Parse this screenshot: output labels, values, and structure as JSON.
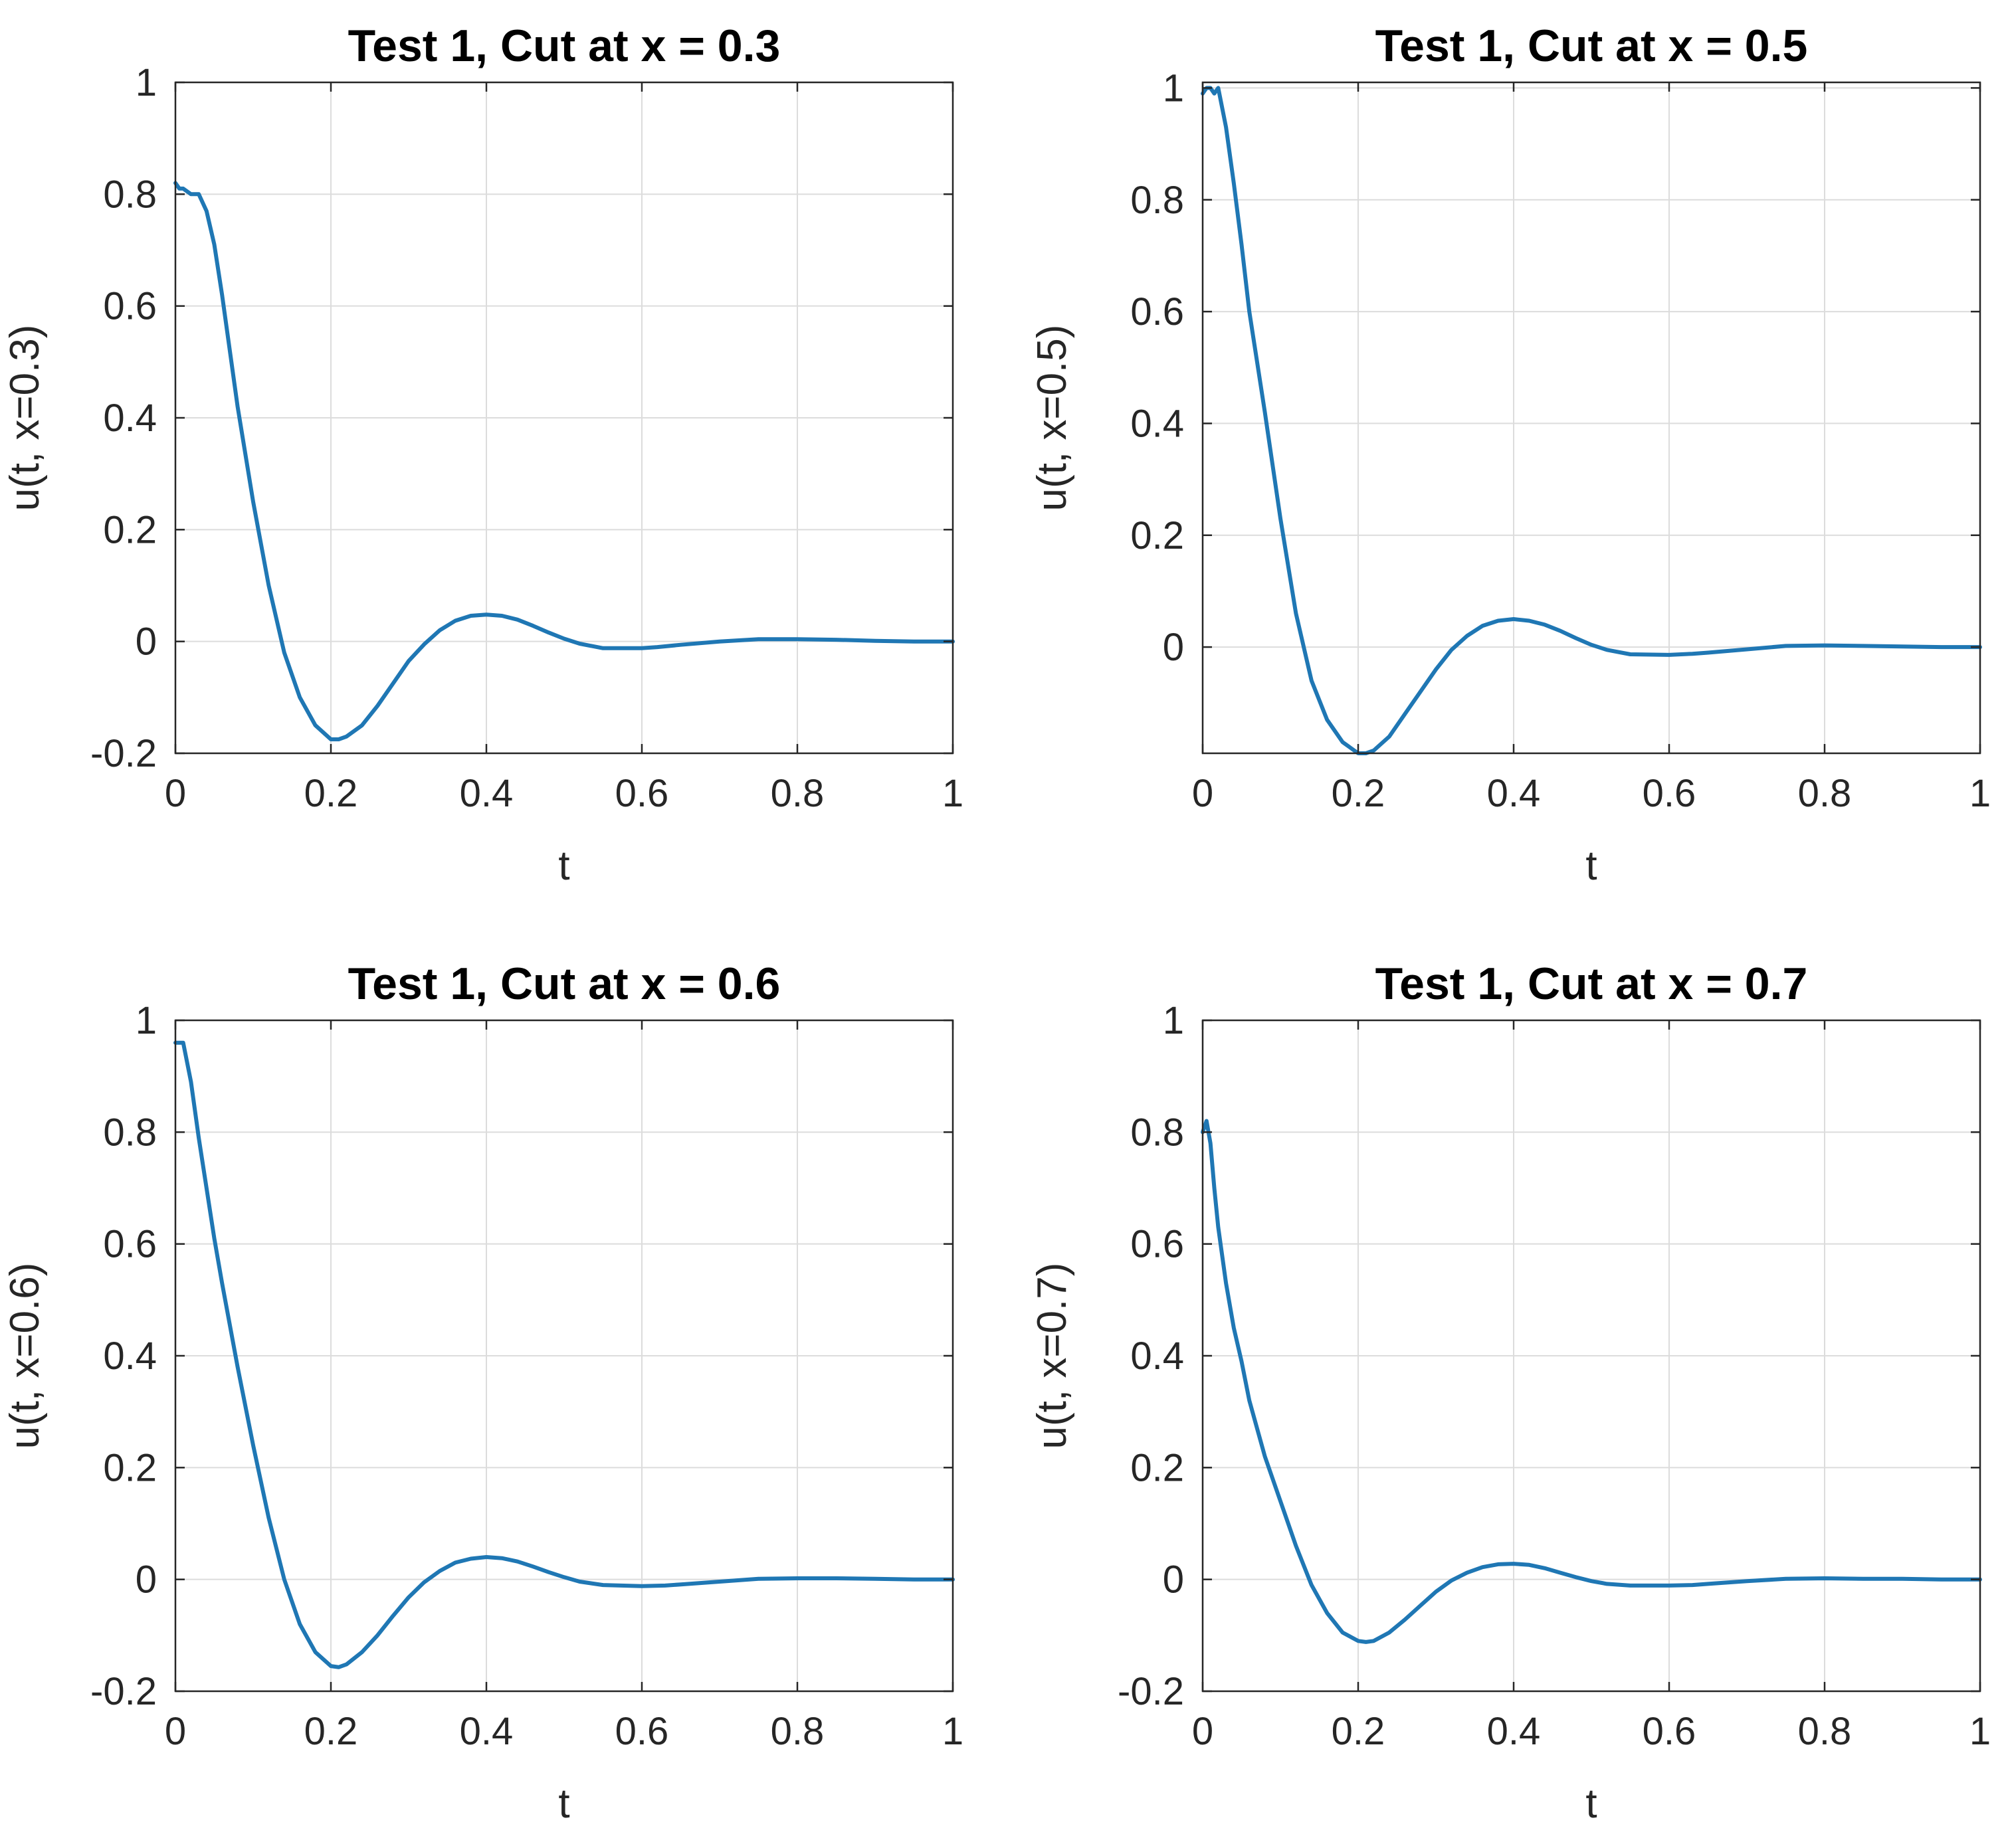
{
  "figure": {
    "line_color": "#1f77b4"
  },
  "chart_data": [
    {
      "type": "line",
      "title": "Test 1, Cut at x = 0.3",
      "xlabel": "t",
      "ylabel": "u(t, x=0.3)",
      "xlim": [
        0,
        1
      ],
      "ylim": [
        -0.2,
        1
      ],
      "xticks": [
        "0",
        "0.2",
        "0.4",
        "0.6",
        "0.8",
        "1"
      ],
      "yticks": [
        "-0.2",
        "0",
        "0.2",
        "0.4",
        "0.6",
        "0.8",
        "1"
      ],
      "grid": true,
      "series": [
        {
          "name": "u",
          "color": "#1f77b4",
          "x": [
            0,
            0.005,
            0.01,
            0.02,
            0.03,
            0.04,
            0.05,
            0.06,
            0.07,
            0.08,
            0.1,
            0.12,
            0.14,
            0.16,
            0.18,
            0.2,
            0.21,
            0.22,
            0.24,
            0.26,
            0.28,
            0.3,
            0.32,
            0.34,
            0.36,
            0.38,
            0.4,
            0.42,
            0.44,
            0.46,
            0.48,
            0.5,
            0.52,
            0.55,
            0.6,
            0.62,
            0.65,
            0.7,
            0.75,
            0.8,
            0.85,
            0.9,
            0.95,
            1.0
          ],
          "y": [
            0.82,
            0.81,
            0.81,
            0.8,
            0.8,
            0.77,
            0.71,
            0.62,
            0.52,
            0.42,
            0.25,
            0.1,
            -0.02,
            -0.1,
            -0.15,
            -0.175,
            -0.175,
            -0.17,
            -0.15,
            -0.115,
            -0.075,
            -0.035,
            -0.005,
            0.02,
            0.037,
            0.046,
            0.048,
            0.046,
            0.039,
            0.028,
            0.016,
            0.005,
            -0.004,
            -0.012,
            -0.012,
            -0.01,
            -0.006,
            0,
            0.004,
            0.004,
            0.003,
            0.001,
            0,
            0
          ]
        }
      ]
    },
    {
      "type": "line",
      "title": "Test 1, Cut at x = 0.5",
      "xlabel": "t",
      "ylabel": "u(t, x=0.5)",
      "xlim": [
        0,
        1
      ],
      "ylim": [
        -0.19,
        1.01
      ],
      "xticks": [
        "0",
        "0.2",
        "0.4",
        "0.6",
        "0.8",
        "1"
      ],
      "yticks": [
        "0",
        "0.2",
        "0.4",
        "0.6",
        "0.8",
        "1"
      ],
      "grid": true,
      "series": [
        {
          "name": "u",
          "color": "#1f77b4",
          "x": [
            0,
            0.005,
            0.01,
            0.015,
            0.02,
            0.03,
            0.04,
            0.05,
            0.06,
            0.08,
            0.1,
            0.12,
            0.14,
            0.16,
            0.18,
            0.2,
            0.21,
            0.22,
            0.24,
            0.26,
            0.28,
            0.3,
            0.32,
            0.34,
            0.36,
            0.38,
            0.4,
            0.42,
            0.44,
            0.46,
            0.48,
            0.5,
            0.52,
            0.55,
            0.6,
            0.63,
            0.65,
            0.7,
            0.75,
            0.8,
            0.85,
            0.9,
            0.95,
            1.0
          ],
          "y": [
            0.99,
            1.0,
            1.0,
            0.99,
            1.0,
            0.93,
            0.83,
            0.72,
            0.6,
            0.42,
            0.23,
            0.06,
            -0.06,
            -0.13,
            -0.17,
            -0.19,
            -0.19,
            -0.185,
            -0.16,
            -0.12,
            -0.08,
            -0.04,
            -0.005,
            0.02,
            0.038,
            0.047,
            0.05,
            0.047,
            0.04,
            0.029,
            0.016,
            0.004,
            -0.005,
            -0.013,
            -0.014,
            -0.012,
            -0.01,
            -0.004,
            0.002,
            0.003,
            0.002,
            0.001,
            0,
            0
          ]
        }
      ]
    },
    {
      "type": "line",
      "title": "Test 1, Cut at x = 0.6",
      "xlabel": "t",
      "ylabel": "u(t, x=0.6)",
      "xlim": [
        0,
        1
      ],
      "ylim": [
        -0.2,
        1
      ],
      "xticks": [
        "0",
        "0.2",
        "0.4",
        "0.6",
        "0.8",
        "1"
      ],
      "yticks": [
        "-0.2",
        "0",
        "0.2",
        "0.4",
        "0.6",
        "0.8",
        "1"
      ],
      "grid": true,
      "series": [
        {
          "name": "u",
          "color": "#1f77b4",
          "x": [
            0,
            0.005,
            0.01,
            0.02,
            0.03,
            0.04,
            0.05,
            0.06,
            0.08,
            0.1,
            0.12,
            0.14,
            0.16,
            0.18,
            0.2,
            0.21,
            0.22,
            0.24,
            0.26,
            0.28,
            0.3,
            0.32,
            0.34,
            0.36,
            0.38,
            0.4,
            0.42,
            0.44,
            0.46,
            0.48,
            0.5,
            0.52,
            0.55,
            0.6,
            0.63,
            0.65,
            0.7,
            0.75,
            0.8,
            0.85,
            0.9,
            0.95,
            1.0
          ],
          "y": [
            0.96,
            0.96,
            0.96,
            0.89,
            0.79,
            0.7,
            0.61,
            0.53,
            0.38,
            0.24,
            0.11,
            0.0,
            -0.08,
            -0.13,
            -0.155,
            -0.157,
            -0.152,
            -0.13,
            -0.1,
            -0.065,
            -0.032,
            -0.005,
            0.015,
            0.03,
            0.037,
            0.04,
            0.038,
            0.032,
            0.023,
            0.013,
            0.004,
            -0.004,
            -0.01,
            -0.012,
            -0.011,
            -0.009,
            -0.004,
            0.001,
            0.002,
            0.002,
            0.001,
            0,
            0
          ]
        }
      ]
    },
    {
      "type": "line",
      "title": "Test 1, Cut at x = 0.7",
      "xlabel": "t",
      "ylabel": "u(t, x=0.7)",
      "xlim": [
        0,
        1
      ],
      "ylim": [
        -0.2,
        1
      ],
      "xticks": [
        "0",
        "0.2",
        "0.4",
        "0.6",
        "0.8",
        "1"
      ],
      "yticks": [
        "-0.2",
        "0",
        "0.2",
        "0.4",
        "0.6",
        "0.8",
        "1"
      ],
      "grid": true,
      "series": [
        {
          "name": "u",
          "color": "#1f77b4",
          "x": [
            0,
            0.005,
            0.01,
            0.015,
            0.02,
            0.03,
            0.04,
            0.05,
            0.06,
            0.08,
            0.1,
            0.12,
            0.14,
            0.16,
            0.18,
            0.2,
            0.21,
            0.22,
            0.24,
            0.26,
            0.28,
            0.3,
            0.32,
            0.34,
            0.36,
            0.38,
            0.4,
            0.42,
            0.44,
            0.46,
            0.48,
            0.5,
            0.52,
            0.55,
            0.6,
            0.63,
            0.65,
            0.7,
            0.75,
            0.8,
            0.85,
            0.9,
            0.95,
            1.0
          ],
          "y": [
            0.8,
            0.82,
            0.78,
            0.7,
            0.63,
            0.53,
            0.45,
            0.39,
            0.32,
            0.22,
            0.14,
            0.06,
            -0.01,
            -0.06,
            -0.095,
            -0.11,
            -0.112,
            -0.11,
            -0.095,
            -0.072,
            -0.047,
            -0.022,
            -0.002,
            0.012,
            0.022,
            0.027,
            0.028,
            0.026,
            0.02,
            0.012,
            0.004,
            -0.003,
            -0.008,
            -0.011,
            -0.011,
            -0.01,
            -0.008,
            -0.003,
            0.001,
            0.002,
            0.001,
            0.001,
            0,
            0
          ]
        }
      ]
    }
  ]
}
